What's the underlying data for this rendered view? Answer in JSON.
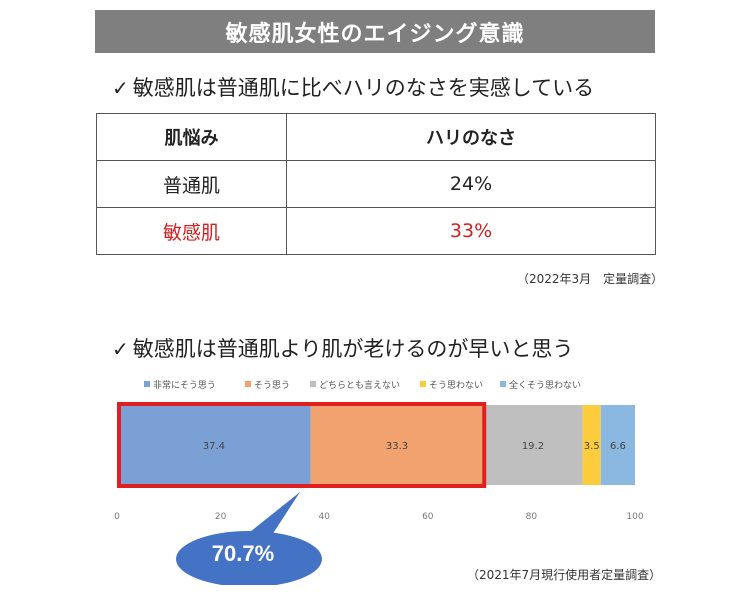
{
  "banner": "敏感肌女性のエイジング意識",
  "section1": {
    "heading": "敏感肌は普通肌に比べハリのなさを実感している",
    "table": {
      "headers": [
        "肌悩み",
        "ハリのなさ"
      ],
      "rows": [
        {
          "label": "普通肌",
          "value": "24%"
        },
        {
          "label": "敏感肌",
          "value": "33%"
        }
      ]
    },
    "note": "（2022年3月　定量調査）"
  },
  "section2": {
    "heading": "敏感肌は普通肌より肌が老けるのが早いと思う",
    "note": "（2021年7月現行使用者定量調査）",
    "callout": "70.7%"
  },
  "check_glyph": "✓",
  "colors": {
    "banner_bg": "#7f7f7f",
    "highlight_red": "#d42020",
    "bubble": "#4472c4"
  },
  "chart_data": {
    "type": "bar",
    "orientation": "horizontal-stacked",
    "series": [
      {
        "name": "非常にそう思う",
        "values": [
          37.4
        ],
        "color": "#7ba0d6"
      },
      {
        "name": "そう思う",
        "values": [
          33.3
        ],
        "color": "#f1a26e"
      },
      {
        "name": "どちらとも言えない",
        "values": [
          19.2
        ],
        "color": "#bfbfbf"
      },
      {
        "name": "そう思わない",
        "values": [
          3.5
        ],
        "color": "#fccc3c"
      },
      {
        "name": "全くそう思わない",
        "values": [
          6.6
        ],
        "color": "#8ab8e0"
      }
    ],
    "xlim": [
      0,
      100
    ],
    "xticks": [
      0,
      20,
      40,
      60,
      80,
      100
    ],
    "legend": "top",
    "grid": false
  }
}
